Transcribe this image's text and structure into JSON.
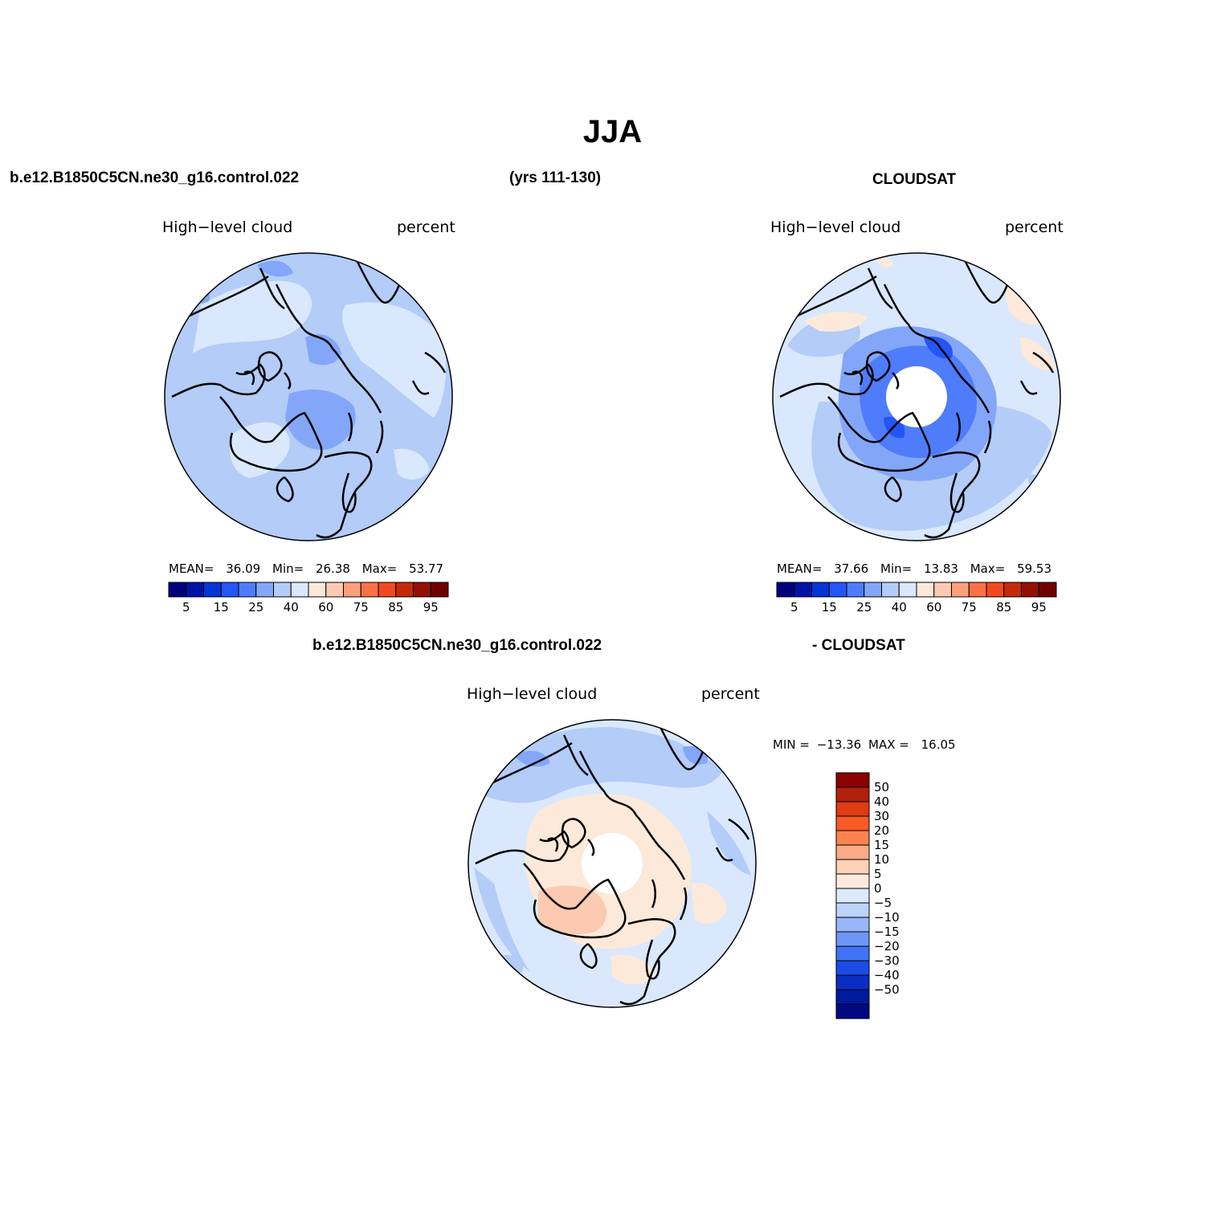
{
  "title": "JJA",
  "header": {
    "case_name": "b.e12.B1850C5CN.ne30_g16.control.022",
    "years": "(yrs 111-130)",
    "obs_name": "CLOUDSAT",
    "diff_case_name": "b.e12.B1850C5CN.ne30_g16.control.022",
    "diff_obs_name": "- CLOUDSAT"
  },
  "panels": [
    {
      "id": "model",
      "variable": "High−level cloud",
      "units": "percent",
      "stats": {
        "mean_label": "MEAN=",
        "mean": "36.09",
        "min_label": "Min=",
        "min": "26.38",
        "max_label": "Max=",
        "max": "53.77"
      }
    },
    {
      "id": "obs",
      "variable": "High−level cloud",
      "units": "percent",
      "stats": {
        "mean_label": "MEAN=",
        "mean": "37.66",
        "min_label": "Min=",
        "min": "13.83",
        "max_label": "Max=",
        "max": "59.53"
      }
    },
    {
      "id": "diff",
      "variable": "High−level cloud",
      "units": "percent",
      "stats": {
        "min_label": "MIN =",
        "min": "−13.36",
        "max_label": "MAX =",
        "max": "16.05"
      }
    }
  ],
  "colorbar_horizontal": {
    "colors": [
      "#00007f",
      "#0013a6",
      "#0635d6",
      "#2355f7",
      "#4f7cfa",
      "#83a6f8",
      "#b3ccf8",
      "#d9e8fc",
      "#fde9d9",
      "#fccab1",
      "#fba07c",
      "#fa7147",
      "#f14a1e",
      "#c42a0a",
      "#960f06",
      "#700000"
    ],
    "labels": [
      "5",
      "15",
      "25",
      "40",
      "60",
      "75",
      "85",
      "95"
    ]
  },
  "colorbar_vertical": {
    "colors_top_to_bottom": [
      "#8b0000",
      "#b3200c",
      "#e03b12",
      "#f85a25",
      "#fa8350",
      "#fbab85",
      "#fdd0b8",
      "#feeadc",
      "#dceafc",
      "#bcd4fa",
      "#97b7f8",
      "#6e97f7",
      "#4073f7",
      "#1c4ce6",
      "#0a2ec4",
      "#001a9e",
      "#000a80"
    ],
    "labels": [
      "50",
      "40",
      "30",
      "20",
      "15",
      "10",
      "5",
      "0",
      "−5",
      "−10",
      "−15",
      "−20",
      "−30",
      "−40",
      "−50"
    ]
  },
  "map_fill": {
    "model_base": "#b3ccf8",
    "model_light": "#d9e8fc",
    "model_dark": "#83a6f8",
    "obs_base": "#d9e8fc",
    "obs_mid": "#b3ccf8",
    "obs_dark": "#4f7cfa",
    "diff_base": "#d9e8fc",
    "diff_warm": "#fde9d9",
    "diff_warm2": "#fccab1",
    "diff_cool": "#b3ccf8"
  }
}
